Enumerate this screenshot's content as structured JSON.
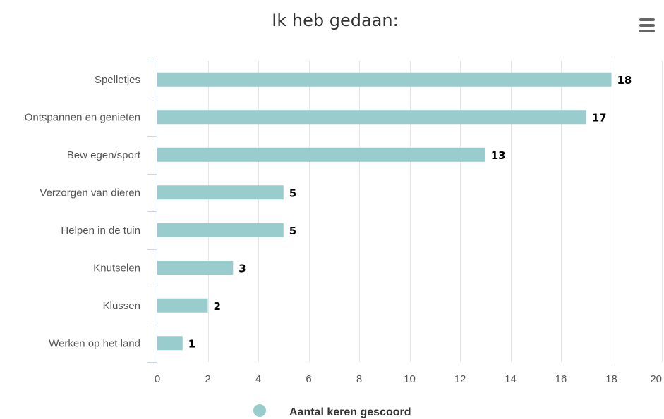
{
  "colors": {
    "bar": "#99cccc",
    "grid": "#e6e6e6",
    "axis": "#ccd6eb",
    "menu_icon": "#666666"
  },
  "menu": {
    "icon": "hamburger-menu-icon"
  },
  "chart_data": {
    "type": "bar",
    "orientation": "horizontal",
    "title": "Ik heb gedaan:",
    "categories": [
      "Spelletjes",
      "Ontspannen en genieten",
      "Bew egen/sport",
      "Verzorgen van dieren",
      "Helpen in de tuin",
      "Knutselen",
      "Klussen",
      "Werken op het land"
    ],
    "series": [
      {
        "name": "Aantal keren gescoord",
        "values": [
          18,
          17,
          13,
          5,
          5,
          3,
          2,
          1
        ]
      }
    ],
    "xlim": [
      0,
      20
    ],
    "ticks": [
      0,
      2,
      4,
      6,
      8,
      10,
      12,
      14,
      16,
      18,
      20
    ],
    "grid": true,
    "data_labels": true,
    "legend": "bottom-center"
  }
}
